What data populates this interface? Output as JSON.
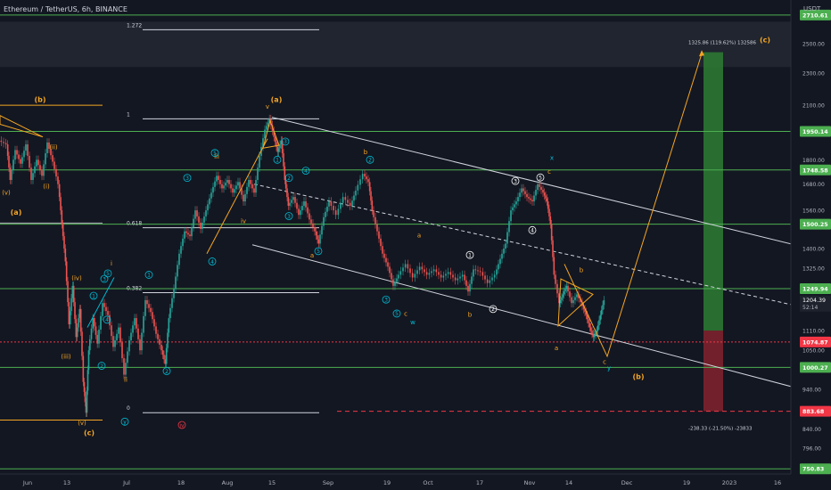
{
  "header": {
    "symbol_line": "Ethereum / TetherUS, 6h, BINANCE"
  },
  "axis": {
    "unit": "USDT"
  },
  "chart_data": {
    "type": "candlestick",
    "title": "Ethereum / TetherUS, 6h, BINANCE",
    "y_scale": "log",
    "ylim": [
      740,
      2800
    ],
    "y_ticks": [
      {
        "v": 2500,
        "label": "2500.00"
      },
      {
        "v": 2300,
        "label": "2300.00"
      },
      {
        "v": 2100,
        "label": "2100.00"
      },
      {
        "v": 1800,
        "label": "1800.00"
      },
      {
        "v": 1680,
        "label": "1680.00"
      },
      {
        "v": 1560,
        "label": "1560.00"
      },
      {
        "v": 1400,
        "label": "1400.00"
      },
      {
        "v": 1325,
        "label": "1325.00"
      },
      {
        "v": 1180,
        "label": "1180.00"
      },
      {
        "v": 1110,
        "label": "1110.00"
      },
      {
        "v": 1050,
        "label": "1050.00"
      },
      {
        "v": 940,
        "label": "940.00"
      },
      {
        "v": 840,
        "label": "840.00"
      },
      {
        "v": 796,
        "label": "796.00"
      }
    ],
    "x_ticks": [
      {
        "x": 31,
        "label": "Jun"
      },
      {
        "x": 75,
        "label": "13"
      },
      {
        "x": 142,
        "label": "Jul"
      },
      {
        "x": 203,
        "label": "18"
      },
      {
        "x": 255,
        "label": "Aug"
      },
      {
        "x": 305,
        "label": "15"
      },
      {
        "x": 368,
        "label": "Sep"
      },
      {
        "x": 434,
        "label": "19"
      },
      {
        "x": 480,
        "label": "Oct"
      },
      {
        "x": 538,
        "label": "17"
      },
      {
        "x": 594,
        "label": "Nov"
      },
      {
        "x": 638,
        "label": "14"
      },
      {
        "x": 703,
        "label": "Dec"
      },
      {
        "x": 770,
        "label": "19"
      },
      {
        "x": 818,
        "label": "2023"
      },
      {
        "x": 872,
        "label": "16"
      }
    ],
    "price_levels": [
      {
        "v": 2710.61,
        "label": "2710.61",
        "color": "#4caf50"
      },
      {
        "v": 1950.14,
        "label": "1950.14",
        "color": "#4caf50"
      },
      {
        "v": 1748.58,
        "label": "1748.58",
        "color": "#4caf50"
      },
      {
        "v": 1500.25,
        "label": "1500.25",
        "color": "#4caf50"
      },
      {
        "v": 1249.94,
        "label": "1249.94",
        "color": "#4caf50"
      },
      {
        "v": 1074.87,
        "label": "1074.87",
        "color": "#f23645"
      },
      {
        "v": 1000.27,
        "label": "1000.27",
        "color": "#4caf50"
      },
      {
        "v": 750.83,
        "label": "750.83",
        "color": "#4caf50"
      }
    ],
    "current_price": {
      "v": 1204.39,
      "label": "1204.39",
      "countdown": "52:14",
      "color": "#089981"
    },
    "stop_price": {
      "v": 883.68,
      "label": "883.68",
      "color": "#f23645"
    },
    "fib_levels": [
      {
        "v": 2600,
        "label": "1.272"
      },
      {
        "v": 2021,
        "label": "1"
      },
      {
        "v": 1485,
        "label": "0.618"
      },
      {
        "v": 1236,
        "label": "0.382"
      },
      {
        "v": 880,
        "label": "0"
      }
    ],
    "target_note": "1325.86 (119.62%) 132586",
    "stop_note": "-238.33 (-21.50%) -23833",
    "wave_labels": [
      {
        "text": "(b)",
        "x": 45,
        "v": 2120,
        "color": "#f5a623",
        "bold": true
      },
      {
        "text": "(ii)",
        "x": 60,
        "v": 1855,
        "color": "#f5a623"
      },
      {
        "text": "(v)",
        "x": 7,
        "v": 1630,
        "color": "#f5a623"
      },
      {
        "text": "(i)",
        "x": 52,
        "v": 1660,
        "color": "#f5a623"
      },
      {
        "text": "(a)",
        "x": 18,
        "v": 1540,
        "color": "#f5a623",
        "bold": true
      },
      {
        "text": "(iv)",
        "x": 86,
        "v": 1280,
        "color": "#f5a623"
      },
      {
        "text": "(iii)",
        "x": 74,
        "v": 1025,
        "color": "#f5a623"
      },
      {
        "text": "(v)",
        "x": 92,
        "v": 850,
        "color": "#f5a623"
      },
      {
        "text": "(c)",
        "x": 100,
        "v": 826,
        "color": "#f5a623",
        "bold": true
      },
      {
        "text": "i",
        "x": 125,
        "v": 1335,
        "color": "#f5a623"
      },
      {
        "text": "ii",
        "x": 141,
        "v": 960,
        "color": "#f5a623"
      },
      {
        "text": "iii",
        "x": 243,
        "v": 1805,
        "color": "#f5a623"
      },
      {
        "text": "iv",
        "x": 273,
        "v": 1505,
        "color": "#f5a623"
      },
      {
        "text": "v",
        "x": 300,
        "v": 2080,
        "color": "#f5a623"
      },
      {
        "text": "(a)",
        "x": 310,
        "v": 2120,
        "color": "#f5a623",
        "bold": true
      },
      {
        "text": "b",
        "x": 410,
        "v": 1830,
        "color": "#f5a623"
      },
      {
        "text": "a",
        "x": 350,
        "v": 1365,
        "color": "#f5a623"
      },
      {
        "text": "a",
        "x": 470,
        "v": 1445,
        "color": "#f5a623"
      },
      {
        "text": "b",
        "x": 527,
        "v": 1155,
        "color": "#f5a623"
      },
      {
        "text": "c",
        "x": 455,
        "v": 1158,
        "color": "#f5a623"
      },
      {
        "text": "w",
        "x": 463,
        "v": 1130,
        "color": "#00bcd4"
      },
      {
        "text": "x",
        "x": 619,
        "v": 1800,
        "color": "#00bcd4"
      },
      {
        "text": "c",
        "x": 616,
        "v": 1730,
        "color": "#f5a623"
      },
      {
        "text": "b",
        "x": 652,
        "v": 1310,
        "color": "#f5a623"
      },
      {
        "text": "a",
        "x": 624,
        "v": 1050,
        "color": "#f5a623"
      },
      {
        "text": "c",
        "x": 678,
        "v": 1010,
        "color": "#f5a623"
      },
      {
        "text": "y",
        "x": 683,
        "v": 993,
        "color": "#00bcd4"
      },
      {
        "text": "(b)",
        "x": 716,
        "v": 968,
        "color": "#f5a623",
        "bold": true
      },
      {
        "text": "(c)",
        "x": 858,
        "v": 2510,
        "color": "#f5a623",
        "bold": true
      }
    ],
    "circled_labels": [
      {
        "text": "1",
        "x": 105,
        "v": 1225,
        "color": "#00bcd4"
      },
      {
        "text": "3",
        "x": 117,
        "v": 1285,
        "color": "#00bcd4"
      },
      {
        "text": "5",
        "x": 121,
        "v": 1305,
        "color": "#00bcd4"
      },
      {
        "text": "4",
        "x": 120,
        "v": 1145,
        "color": "#00bcd4"
      },
      {
        "text": "2",
        "x": 114,
        "v": 1005,
        "color": "#00bcd4"
      },
      {
        "text": "1",
        "x": 167,
        "v": 1300,
        "color": "#00bcd4"
      },
      {
        "text": "2",
        "x": 187,
        "v": 990,
        "color": "#00bcd4"
      },
      {
        "text": "3",
        "x": 210,
        "v": 1710,
        "color": "#00bcd4"
      },
      {
        "text": "4",
        "x": 238,
        "v": 1350,
        "color": "#00bcd4"
      },
      {
        "text": "5",
        "x": 241,
        "v": 1835,
        "color": "#00bcd4"
      },
      {
        "text": "3",
        "x": 320,
        "v": 1895,
        "color": "#00bcd4"
      },
      {
        "text": "1",
        "x": 311,
        "v": 1800,
        "color": "#00bcd4"
      },
      {
        "text": "2",
        "x": 324,
        "v": 1710,
        "color": "#00bcd4"
      },
      {
        "text": "4",
        "x": 343,
        "v": 1745,
        "color": "#00bcd4"
      },
      {
        "text": "3",
        "x": 324,
        "v": 1535,
        "color": "#00bcd4"
      },
      {
        "text": "5",
        "x": 357,
        "v": 1390,
        "color": "#00bcd4"
      },
      {
        "text": "2",
        "x": 415,
        "v": 1800,
        "color": "#00bcd4"
      },
      {
        "text": "3",
        "x": 433,
        "v": 1212,
        "color": "#00bcd4"
      },
      {
        "text": "5",
        "x": 445,
        "v": 1165,
        "color": "#00bcd4"
      },
      {
        "text": "1",
        "x": 527,
        "v": 1375,
        "color": "#ffffff"
      },
      {
        "text": "2",
        "x": 553,
        "v": 1180,
        "color": "#ffffff"
      },
      {
        "text": "3",
        "x": 578,
        "v": 1695,
        "color": "#ffffff"
      },
      {
        "text": "5",
        "x": 606,
        "v": 1712,
        "color": "#ffffff"
      },
      {
        "text": "4",
        "x": 597,
        "v": 1475,
        "color": "#ffffff"
      },
      {
        "text": "y",
        "x": 140,
        "v": 858,
        "color": "#00bcd4"
      },
      {
        "text": "iv",
        "x": 204,
        "v": 850,
        "color": "#f23645"
      }
    ],
    "price_path": [
      [
        0,
        1900
      ],
      [
        8,
        1880
      ],
      [
        12,
        1700
      ],
      [
        18,
        1850
      ],
      [
        24,
        1780
      ],
      [
        30,
        1880
      ],
      [
        36,
        1700
      ],
      [
        42,
        1800
      ],
      [
        48,
        1720
      ],
      [
        54,
        1890
      ],
      [
        60,
        1790
      ],
      [
        66,
        1680
      ],
      [
        70,
        1500
      ],
      [
        74,
        1350
      ],
      [
        78,
        1130
      ],
      [
        82,
        1260
      ],
      [
        86,
        1090
      ],
      [
        90,
        1180
      ],
      [
        94,
        960
      ],
      [
        97,
        880
      ],
      [
        100,
        1050
      ],
      [
        105,
        1150
      ],
      [
        110,
        1070
      ],
      [
        116,
        1200
      ],
      [
        122,
        1160
      ],
      [
        128,
        1060
      ],
      [
        134,
        1120
      ],
      [
        140,
        980
      ],
      [
        146,
        1080
      ],
      [
        152,
        1150
      ],
      [
        158,
        1050
      ],
      [
        164,
        1210
      ],
      [
        170,
        1170
      ],
      [
        176,
        1100
      ],
      [
        182,
        1050
      ],
      [
        186,
        1010
      ],
      [
        190,
        1150
      ],
      [
        196,
        1250
      ],
      [
        202,
        1380
      ],
      [
        208,
        1470
      ],
      [
        214,
        1450
      ],
      [
        220,
        1560
      ],
      [
        226,
        1480
      ],
      [
        232,
        1560
      ],
      [
        238,
        1640
      ],
      [
        244,
        1720
      ],
      [
        250,
        1660
      ],
      [
        256,
        1700
      ],
      [
        262,
        1640
      ],
      [
        268,
        1690
      ],
      [
        274,
        1600
      ],
      [
        280,
        1700
      ],
      [
        286,
        1640
      ],
      [
        292,
        1820
      ],
      [
        298,
        1960
      ],
      [
        303,
        2020
      ],
      [
        308,
        1920
      ],
      [
        312,
        1840
      ],
      [
        316,
        1900
      ],
      [
        320,
        1700
      ],
      [
        324,
        1580
      ],
      [
        330,
        1620
      ],
      [
        336,
        1540
      ],
      [
        342,
        1600
      ],
      [
        348,
        1520
      ],
      [
        354,
        1470
      ],
      [
        358,
        1420
      ],
      [
        364,
        1530
      ],
      [
        370,
        1600
      ],
      [
        378,
        1540
      ],
      [
        386,
        1620
      ],
      [
        394,
        1580
      ],
      [
        400,
        1650
      ],
      [
        408,
        1730
      ],
      [
        414,
        1690
      ],
      [
        418,
        1560
      ],
      [
        424,
        1470
      ],
      [
        430,
        1380
      ],
      [
        436,
        1330
      ],
      [
        442,
        1260
      ],
      [
        448,
        1300
      ],
      [
        456,
        1340
      ],
      [
        464,
        1290
      ],
      [
        472,
        1330
      ],
      [
        480,
        1300
      ],
      [
        488,
        1320
      ],
      [
        496,
        1290
      ],
      [
        504,
        1310
      ],
      [
        512,
        1280
      ],
      [
        520,
        1300
      ],
      [
        526,
        1240
      ],
      [
        532,
        1320
      ],
      [
        540,
        1310
      ],
      [
        548,
        1270
      ],
      [
        556,
        1300
      ],
      [
        562,
        1360
      ],
      [
        568,
        1420
      ],
      [
        574,
        1560
      ],
      [
        580,
        1600
      ],
      [
        586,
        1660
      ],
      [
        592,
        1620
      ],
      [
        598,
        1600
      ],
      [
        604,
        1680
      ],
      [
        610,
        1640
      ],
      [
        614,
        1600
      ],
      [
        618,
        1500
      ],
      [
        622,
        1300
      ],
      [
        628,
        1200
      ],
      [
        632,
        1230
      ],
      [
        636,
        1260
      ],
      [
        642,
        1200
      ],
      [
        648,
        1230
      ],
      [
        654,
        1190
      ],
      [
        658,
        1160
      ],
      [
        662,
        1120
      ],
      [
        666,
        1090
      ],
      [
        670,
        1110
      ],
      [
        674,
        1160
      ],
      [
        678,
        1210
      ]
    ],
    "dashed_line": {
      "x1": 285,
      "v1": 1680,
      "x2": 932,
      "v2": 1165
    },
    "channel_lines": [
      {
        "x1": 305,
        "v1": 2030,
        "x2": 932,
        "v2": 1380
      },
      {
        "x1": 283,
        "v1": 1415,
        "x2": 932,
        "v2": 920
      }
    ],
    "projection": [
      [
        633,
        1340
      ],
      [
        681,
        1032
      ],
      [
        787,
        2430
      ]
    ],
    "target_zone": {
      "x1": 789,
      "x2": 811,
      "top": 2440,
      "mid": 1110,
      "bottom": 883.68
    },
    "triangles": [
      [
        [
          0,
          2040
        ],
        [
          48,
          1920
        ],
        [
          0,
          1990
        ]
      ],
      [
        [
          295,
          1860
        ],
        [
          303,
          2010
        ],
        [
          313,
          1875
        ]
      ],
      [
        [
          629,
          1285
        ],
        [
          665,
          1230
        ],
        [
          626,
          1125
        ]
      ]
    ]
  }
}
